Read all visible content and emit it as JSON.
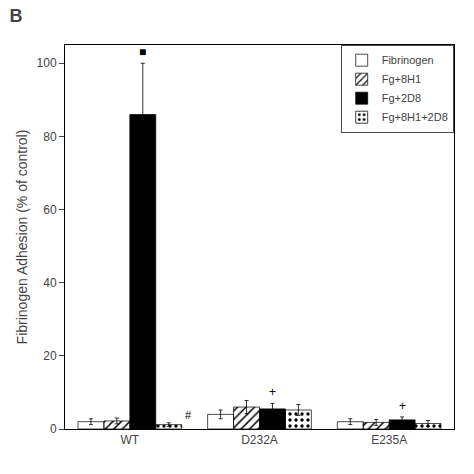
{
  "chart_data": {
    "type": "bar",
    "title": "B",
    "categories": [
      "WT",
      "D232A",
      "E235A"
    ],
    "series": [
      {
        "name": "Fibrinogen",
        "color": "white",
        "values": [
          2.0,
          4.0,
          2.0
        ],
        "errors": [
          0.8,
          1.2,
          0.8
        ]
      },
      {
        "name": "Fg+8H1",
        "color": "#b0b0b0",
        "values": [
          2.2,
          6.0,
          1.8
        ],
        "errors": [
          0.8,
          1.8,
          0.8
        ]
      },
      {
        "name": "Fg+2D8",
        "color": "black",
        "values": [
          86.0,
          5.5,
          2.5
        ],
        "errors": [
          14.0,
          1.5,
          0.8
        ]
      },
      {
        "name": "Fg+8H1+2D8",
        "color": "#888888",
        "values": [
          1.2,
          5.2,
          1.5
        ],
        "errors": [
          0.5,
          1.5,
          0.8
        ]
      }
    ],
    "y_label": "Fibrinogen Adhesion (% of control)",
    "ylim": [
      0,
      105
    ],
    "yticks": [
      0,
      20,
      40,
      60,
      80,
      100
    ],
    "grid": false,
    "legend": "upper right",
    "annotations": [
      {
        "text": "■",
        "category": "WT",
        "series": "Fg+2D8",
        "position": "above"
      },
      {
        "text": "#",
        "category": "WT",
        "series": "Fg+8H1+2D8",
        "position": "right"
      },
      {
        "text": "+",
        "category": "D232A",
        "series": "Fg+2D8",
        "position": "above"
      },
      {
        "text": "+",
        "category": "E235A",
        "series": "Fg+2D8",
        "position": "above"
      }
    ]
  }
}
